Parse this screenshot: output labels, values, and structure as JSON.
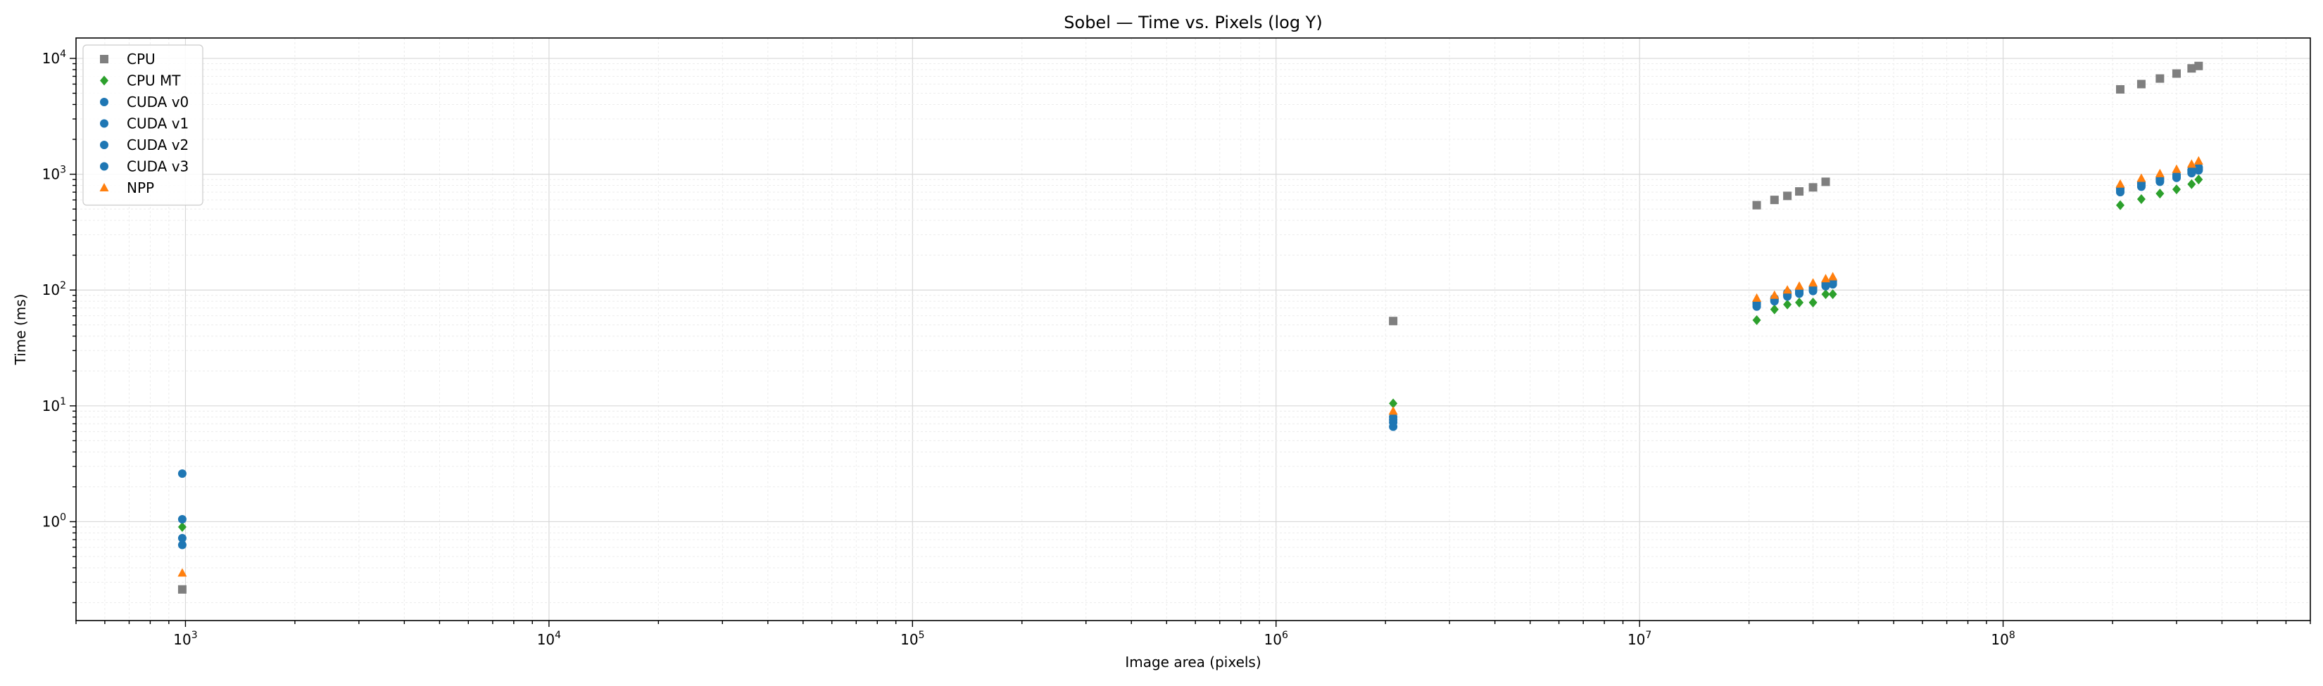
{
  "chart_data": {
    "type": "scatter",
    "title": "Sobel — Time vs. Pixels (log Y)",
    "xlabel": "Image area (pixels)",
    "ylabel": "Time (ms)",
    "x_scale": "log",
    "y_scale": "log",
    "xlim": [
      500,
      700000000
    ],
    "ylim": [
      0.14,
      15000
    ],
    "x_ticks": [
      {
        "value": 1000,
        "label": "10",
        "exp": "3"
      },
      {
        "value": 10000,
        "label": "10",
        "exp": "4"
      },
      {
        "value": 100000,
        "label": "10",
        "exp": "5"
      },
      {
        "value": 1000000,
        "label": "10",
        "exp": "6"
      },
      {
        "value": 10000000,
        "label": "10",
        "exp": "7"
      },
      {
        "value": 100000000,
        "label": "10",
        "exp": "8"
      }
    ],
    "y_ticks": [
      {
        "value": 1,
        "label": "10",
        "exp": "0"
      },
      {
        "value": 10,
        "label": "10",
        "exp": "1"
      },
      {
        "value": 100,
        "label": "10",
        "exp": "2"
      },
      {
        "value": 1000,
        "label": "10",
        "exp": "3"
      },
      {
        "value": 10000,
        "label": "10",
        "exp": "4"
      }
    ],
    "grid": true,
    "legend_position": "top-left",
    "series": [
      {
        "name": "CPU",
        "marker": "square",
        "color": "#7f7f7f",
        "x": [
          980,
          2100000,
          21000000,
          23500000,
          25500000,
          27500000,
          30000000,
          32500000,
          210000000,
          240000000,
          270000000,
          300000000,
          330000000,
          345000000
        ],
        "y": [
          0.26,
          54,
          540,
          600,
          650,
          710,
          770,
          860,
          5400,
          6000,
          6700,
          7400,
          8200,
          8600
        ]
      },
      {
        "name": "CPU MT",
        "marker": "diamond",
        "color": "#2ca02c",
        "x": [
          980,
          2100000,
          21000000,
          23500000,
          25500000,
          27500000,
          30000000,
          32500000,
          34000000,
          210000000,
          240000000,
          270000000,
          300000000,
          330000000,
          345000000
        ],
        "y": [
          0.9,
          10.5,
          55,
          68,
          75,
          78,
          78,
          92,
          92,
          540,
          610,
          680,
          740,
          820,
          900
        ]
      },
      {
        "name": "CUDA v0",
        "marker": "circle",
        "color": "#1f77b4",
        "x": [
          980,
          2100000,
          21000000,
          23500000,
          25500000,
          27500000,
          30000000,
          32500000,
          34000000,
          210000000,
          240000000,
          270000000,
          300000000,
          330000000,
          345000000
        ],
        "y": [
          2.6,
          8.0,
          75,
          82,
          90,
          95,
          100,
          110,
          115,
          720,
          800,
          880,
          950,
          1050,
          1100
        ]
      },
      {
        "name": "CUDA v1",
        "marker": "circle",
        "color": "#1f77b4",
        "x": [
          980,
          2100000,
          21000000,
          23500000,
          25500000,
          27500000,
          30000000,
          32500000,
          34000000,
          210000000,
          240000000,
          270000000,
          300000000,
          330000000,
          345000000
        ],
        "y": [
          1.05,
          7.6,
          78,
          85,
          95,
          100,
          105,
          115,
          120,
          750,
          830,
          910,
          980,
          1080,
          1130
        ]
      },
      {
        "name": "CUDA v2",
        "marker": "circle",
        "color": "#1f77b4",
        "x": [
          980,
          2100000,
          21000000,
          23500000,
          25500000,
          27500000,
          30000000,
          32500000,
          34000000,
          210000000,
          240000000,
          270000000,
          300000000,
          330000000,
          345000000
        ],
        "y": [
          0.72,
          7.2,
          72,
          80,
          88,
          93,
          98,
          108,
          112,
          700,
          780,
          860,
          930,
          1020,
          1080
        ]
      },
      {
        "name": "CUDA v3",
        "marker": "circle",
        "color": "#1f77b4",
        "x": [
          980,
          2100000,
          21000000,
          23500000,
          25500000,
          27500000,
          30000000,
          32500000,
          34000000,
          210000000,
          240000000,
          270000000,
          300000000,
          330000000,
          345000000
        ],
        "y": [
          0.63,
          6.6,
          76,
          84,
          92,
          97,
          103,
          112,
          118,
          760,
          840,
          920,
          990,
          1090,
          1150
        ]
      },
      {
        "name": "NPP",
        "marker": "triangle",
        "color": "#ff7f0e",
        "x": [
          980,
          2100000,
          21000000,
          23500000,
          25500000,
          27500000,
          30000000,
          32500000,
          34000000,
          210000000,
          240000000,
          270000000,
          300000000,
          330000000,
          345000000
        ],
        "y": [
          0.36,
          9.0,
          85,
          90,
          100,
          108,
          115,
          125,
          130,
          820,
          920,
          1010,
          1100,
          1220,
          1300
        ]
      }
    ]
  }
}
